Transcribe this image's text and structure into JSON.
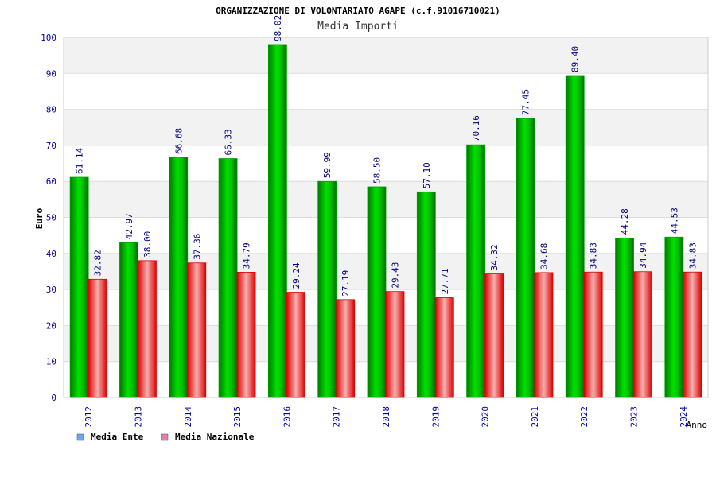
{
  "chart_data": {
    "type": "bar",
    "title": "ORGANIZZAZIONE DI VOLONTARIATO AGAPE (c.f.91016710021)",
    "subtitle": "Media Importi",
    "xlabel": "Anno",
    "ylabel": "Euro",
    "ylim": [
      0,
      100
    ],
    "yticks": [
      "0",
      "10",
      "20",
      "30",
      "40",
      "50",
      "60",
      "70",
      "80",
      "90",
      "100"
    ],
    "grid": true,
    "legend_placement": "bottom-left",
    "categories": [
      "2012",
      "2013",
      "2014",
      "2015",
      "2016",
      "2017",
      "2018",
      "2019",
      "2020",
      "2021",
      "2022",
      "2023",
      "2024"
    ],
    "series": [
      {
        "name": "Media Ente",
        "color": "#00c000",
        "legend_color": "#6aa9f0",
        "values": [
          61.14,
          42.97,
          66.68,
          66.33,
          98.02,
          59.99,
          58.5,
          57.1,
          70.16,
          77.45,
          89.4,
          44.28,
          44.53
        ],
        "labels": [
          "61.14",
          "42.97",
          "66.68",
          "66.33",
          "98.02",
          "59.99",
          "58.50",
          "57.10",
          "70.16",
          "77.45",
          "89.40",
          "44.28",
          "44.53"
        ]
      },
      {
        "name": "Media Nazionale",
        "color": "#ff0000",
        "legend_color": "#e080b0",
        "values": [
          32.82,
          38.0,
          37.36,
          34.79,
          29.24,
          27.19,
          29.43,
          27.71,
          34.32,
          34.68,
          34.83,
          34.94,
          34.83
        ],
        "labels": [
          "32.82",
          "38.00",
          "37.36",
          "34.79",
          "29.24",
          "27.19",
          "29.43",
          "27.71",
          "34.32",
          "34.68",
          "34.83",
          "34.94",
          "34.83"
        ]
      }
    ]
  }
}
